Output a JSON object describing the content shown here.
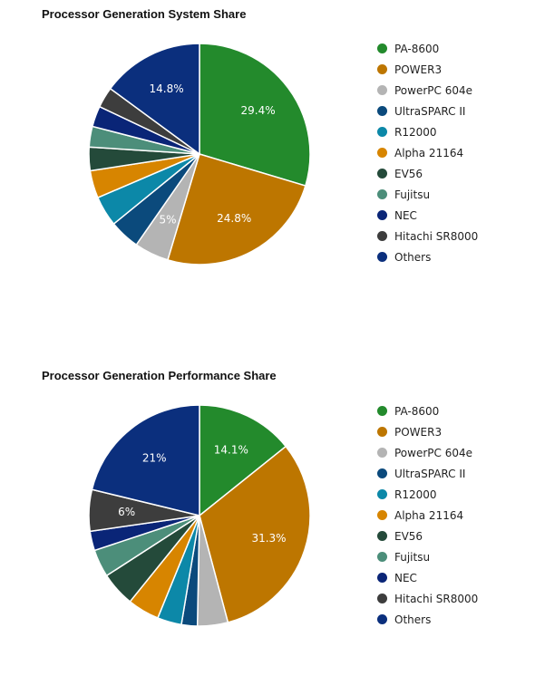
{
  "chart_data": [
    {
      "type": "pie",
      "title": "Processor Generation System Share",
      "categories": [
        "PA-8600",
        "POWER3",
        "PowerPC 604e",
        "UltraSPARC II",
        "R12000",
        "Alpha 21164",
        "EV56",
        "Fujitsu",
        "NEC",
        "Hitachi SR8000",
        "Others"
      ],
      "values": [
        29.4,
        24.8,
        5.0,
        4.4,
        4.4,
        4.0,
        3.4,
        3.0,
        3.0,
        3.0,
        14.8
      ],
      "data_labels": [
        "29.4%",
        "24.8%",
        "5%",
        "",
        "",
        "",
        "",
        "",
        "",
        "",
        "14.8%"
      ],
      "colors": [
        "#238a2c",
        "#bd7600",
        "#b4b4b4",
        "#0b4a7c",
        "#0c88a8",
        "#d78500",
        "#244a3a",
        "#4c8e7a",
        "#0a2577",
        "#3d3d3d",
        "#0b2f7d"
      ],
      "legend_position": "right"
    },
    {
      "type": "pie",
      "title": "Processor Generation Performance Share",
      "categories": [
        "PA-8600",
        "POWER3",
        "PowerPC 604e",
        "UltraSPARC II",
        "R12000",
        "Alpha 21164",
        "EV56",
        "Fujitsu",
        "NEC",
        "Hitachi SR8000",
        "Others"
      ],
      "values": [
        14.1,
        31.3,
        4.4,
        2.3,
        3.5,
        4.6,
        5.0,
        4.0,
        2.8,
        6.0,
        21.0
      ],
      "data_labels": [
        "14.1%",
        "31.3%",
        "",
        "",
        "",
        "",
        "",
        "",
        "",
        "6%",
        "21%"
      ],
      "colors": [
        "#238a2c",
        "#bd7600",
        "#b4b4b4",
        "#0b4a7c",
        "#0c88a8",
        "#d78500",
        "#244a3a",
        "#4c8e7a",
        "#0a2577",
        "#3d3d3d",
        "#0b2f7d"
      ],
      "legend_position": "right"
    }
  ]
}
